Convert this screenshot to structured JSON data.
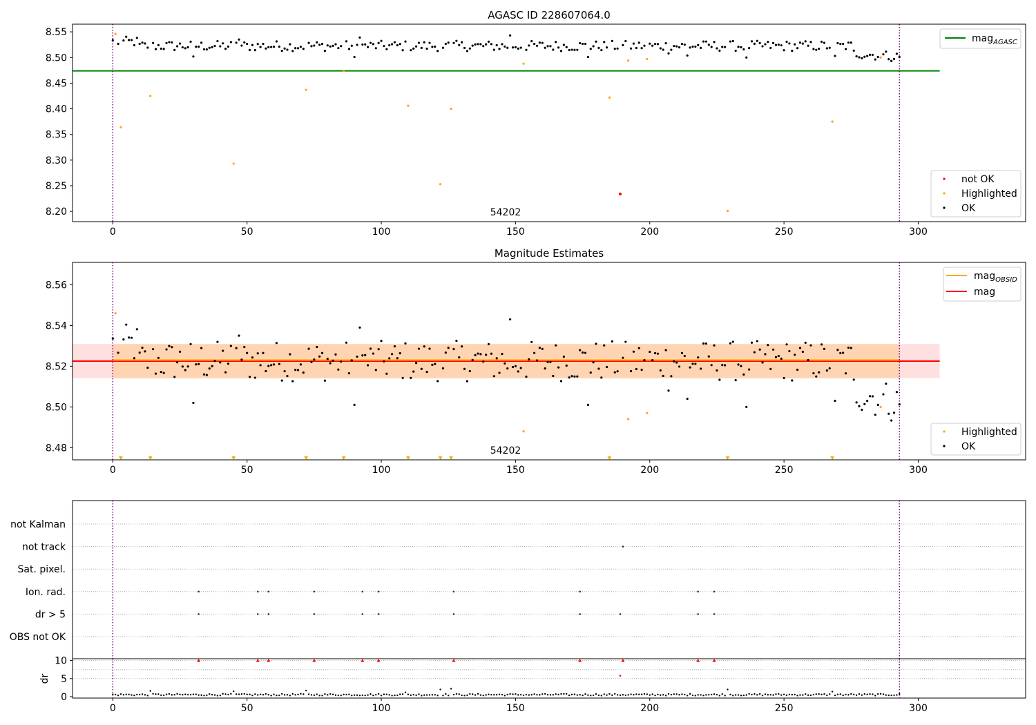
{
  "figure": {
    "title_top": "AGASC ID 228607064.0",
    "title_middle": "Magnitude Estimates",
    "obsid_label": "54202"
  },
  "legend_top_right": {
    "agasc_label_main": "mag",
    "agasc_label_sub": "AGASC"
  },
  "legend_top_lower": {
    "not_ok": "not OK",
    "highlighted": "Highlighted",
    "ok": "OK"
  },
  "legend_mid_right": {
    "obsid_label_main": "mag",
    "obsid_label_sub": "OBSID",
    "mag_label": "mag"
  },
  "legend_mid_lower": {
    "highlighted": "Highlighted",
    "ok": "OK"
  },
  "flags": {
    "rows": [
      "not Kalman",
      "not track",
      "Sat. pixel.",
      "Ion. rad.",
      "dr > 5",
      "OBS not OK"
    ],
    "dr_label": "dr"
  },
  "colors": {
    "ok": "#000000",
    "highlighted": "#ffa500",
    "not_ok": "#ff0000",
    "agasc_line": "#008000",
    "mag_line": "#ff0000",
    "obsid_line": "#ffa500",
    "obs_boundary": "#800080"
  },
  "chart_data": [
    {
      "type": "scatter",
      "title": "AGASC ID 228607064.0",
      "xlim": [
        -15,
        340
      ],
      "ylim": [
        8.18,
        8.565
      ],
      "xticks": [
        0,
        50,
        100,
        150,
        200,
        250,
        300
      ],
      "yticks": [
        8.2,
        8.25,
        8.3,
        8.35,
        8.4,
        8.45,
        8.5,
        8.55
      ],
      "hlines": [
        {
          "name": "mag_AGASC",
          "y": 8.474,
          "x_range": [
            -15,
            308
          ]
        }
      ],
      "vlines": [
        0,
        293
      ],
      "annotation": "54202",
      "series": [
        {
          "name": "not OK",
          "x": [
            189
          ],
          "y": [
            8.234
          ]
        },
        {
          "name": "Highlighted",
          "x": [
            1,
            3,
            14,
            45,
            72,
            86,
            110,
            122,
            126,
            153,
            185,
            192,
            199,
            229,
            268,
            286
          ],
          "y": [
            8.546,
            8.364,
            8.425,
            8.293,
            8.437,
            8.474,
            8.406,
            8.253,
            8.4,
            8.488,
            8.422,
            8.494,
            8.497,
            8.201,
            8.375,
            8.5
          ]
        },
        {
          "name": "OK",
          "x_range": [
            0,
            293
          ]
        }
      ],
      "legend": [
        "mag_AGASC",
        "not OK",
        "Highlighted",
        "OK"
      ]
    },
    {
      "type": "scatter",
      "title": "Magnitude Estimates",
      "xlim": [
        -15,
        340
      ],
      "ylim": [
        8.474,
        8.571
      ],
      "xticks": [
        0,
        50,
        100,
        150,
        200,
        250,
        300
      ],
      "yticks": [
        8.48,
        8.5,
        8.52,
        8.54,
        8.56
      ],
      "hlines": [
        {
          "name": "mag_OBSID",
          "y": 8.5225,
          "x_range": [
            0,
            293
          ]
        },
        {
          "name": "mag",
          "y": 8.5225,
          "x_range": [
            -15,
            308
          ]
        }
      ],
      "bands": [
        {
          "name": "mag_OBSID_range",
          "y": [
            8.5141,
            8.5309
          ],
          "x_range": [
            0,
            293
          ]
        },
        {
          "name": "mag_range",
          "y": [
            8.5141,
            8.5309
          ],
          "x_range": [
            -15,
            308
          ]
        }
      ],
      "vlines": [
        0,
        293
      ],
      "annotation": "54202",
      "series": [
        {
          "name": "Highlighted",
          "x": [
            1,
            153,
            192,
            199,
            286
          ],
          "y": [
            8.546,
            8.488,
            8.494,
            8.497,
            8.5
          ]
        },
        {
          "name": "Highlighted (below axis)",
          "x": [
            3,
            14,
            45,
            72,
            86,
            110,
            122,
            126,
            185,
            229,
            268
          ]
        },
        {
          "name": "OK",
          "x_range": [
            0,
            293
          ]
        }
      ],
      "legend": [
        "mag_OBSID",
        "mag",
        "Highlighted",
        "OK"
      ]
    },
    {
      "type": "scatter",
      "title": "",
      "xlim": [
        -15,
        340
      ],
      "categories": [
        "not Kalman",
        "not track",
        "Sat. pixel.",
        "Ion. rad.",
        "dr > 5",
        "OBS not OK"
      ],
      "vlines": [
        0,
        293
      ],
      "series": [
        {
          "name": "not track",
          "x": [
            190
          ]
        },
        {
          "name": "Ion. rad.",
          "x": [
            32,
            54,
            58,
            75,
            93,
            99,
            127,
            174,
            218,
            224
          ]
        },
        {
          "name": "dr > 5",
          "x": [
            32,
            54,
            58,
            75,
            93,
            99,
            127,
            174,
            189,
            218,
            224
          ]
        }
      ]
    },
    {
      "type": "scatter",
      "title": "",
      "xlim": [
        -15,
        340
      ],
      "ylim": [
        0,
        10.5
      ],
      "xticks": [
        0,
        50,
        100,
        150,
        200,
        250,
        300
      ],
      "yticks": [
        0,
        5,
        10
      ],
      "ylabel": "dr",
      "series": [
        {
          "name": "dr > 10 (clipped)",
          "x": [
            32,
            54,
            58,
            75,
            93,
            99,
            127,
            174,
            190,
            218,
            224
          ],
          "y": 10
        },
        {
          "name": "dr 5-10",
          "x": [
            189
          ],
          "y": [
            5.8
          ]
        },
        {
          "name": "dr",
          "x_range": [
            0,
            293
          ],
          "peaks": {
            "x": [
              14,
              45,
              72,
              109,
              122,
              126,
              229,
              268
            ],
            "y": [
              1.6,
              1.5,
              1.7,
              1.2,
              2.0,
              2.2,
              2.0,
              1.4
            ]
          }
        }
      ]
    }
  ]
}
